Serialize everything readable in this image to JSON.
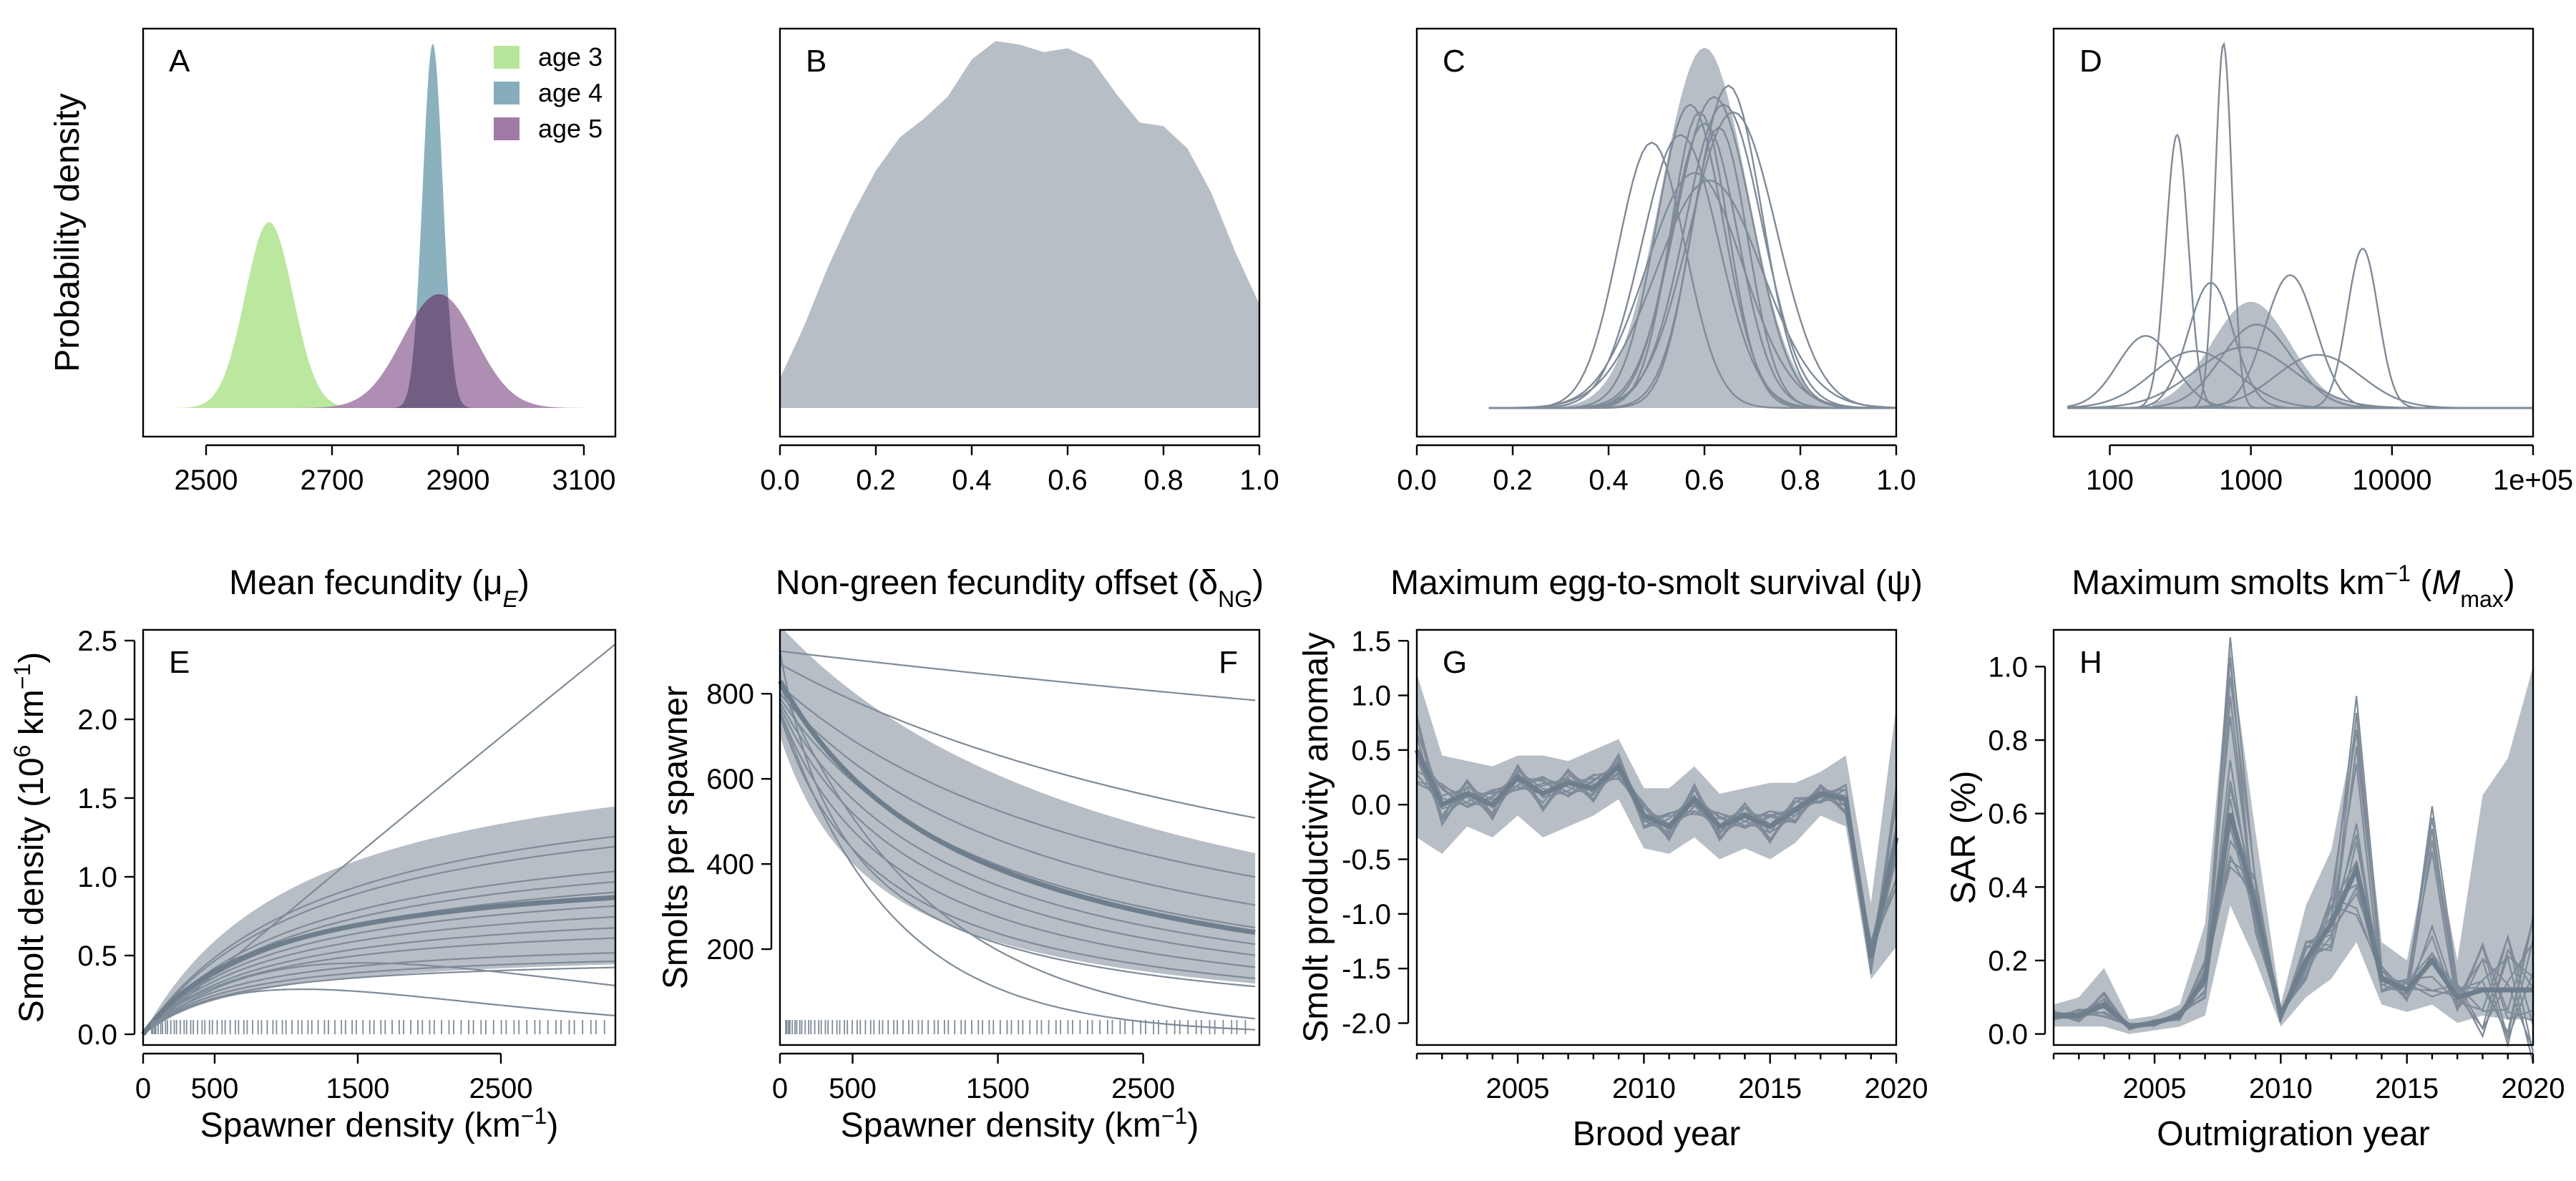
{
  "colors": {
    "band": "#b7bec6",
    "line": "#6f7e8c",
    "thin_line": "#7f8b98",
    "age3": "#b7e69a",
    "age4": "#86adbb",
    "age5": "#a07aa4",
    "overlap45": "#6d5a7d"
  },
  "panels": [
    {
      "key": "A",
      "letter": "A",
      "xlabel": "Mean fecundity (μ",
      "xlabel_sub": "E",
      "xlabel_end": ")",
      "ylabel": "Probability density",
      "xticks": [
        "2500",
        "2700",
        "2900",
        "3100"
      ],
      "legend": [
        {
          "label": "age 3",
          "color_key": "age3"
        },
        {
          "label": "age 4",
          "color_key": "age4"
        },
        {
          "label": "age 5",
          "color_key": "age5"
        }
      ]
    },
    {
      "key": "B",
      "letter": "B",
      "xlabel": "Non-green fecundity offset (δ",
      "xlabel_sub": "NG",
      "xlabel_end": ")",
      "xticks": [
        "0.0",
        "0.2",
        "0.4",
        "0.6",
        "0.8",
        "1.0"
      ]
    },
    {
      "key": "C",
      "letter": "C",
      "xlabel": "Maximum egg-to-smolt survival (ψ)",
      "xticks": [
        "0.0",
        "0.2",
        "0.4",
        "0.6",
        "0.8",
        "1.0"
      ]
    },
    {
      "key": "D",
      "letter": "D",
      "xlabel": "Maximum smolts km",
      "xlabel_sup": "−1",
      "xlabel_mid": " (",
      "xlabel_ital": "M",
      "xlabel_sub": "max",
      "xlabel_end": ")",
      "xticks": [
        "100",
        "1000",
        "10000",
        "1e+05"
      ]
    },
    {
      "key": "E",
      "letter": "E",
      "xlabel": "Spawner density (km",
      "xlabel_sup": "−1",
      "xlabel_end": ")",
      "ylabel": "Smolt density (10",
      "ylabel_sup": "6",
      "ylabel_mid": " km",
      "ylabel_sup2": "−1",
      "ylabel_end": ")",
      "xticks": [
        "0",
        "500",
        "1500",
        "2500"
      ],
      "yticks": [
        "0.0",
        "0.5",
        "1.0",
        "1.5",
        "2.0",
        "2.5"
      ]
    },
    {
      "key": "F",
      "letter": "F",
      "xlabel": "Spawner density (km",
      "xlabel_sup": "−1",
      "xlabel_end": ")",
      "ylabel": "Smolts per spawner",
      "xticks": [
        "0",
        "500",
        "1500",
        "2500"
      ],
      "yticks": [
        "200",
        "400",
        "600",
        "800"
      ]
    },
    {
      "key": "G",
      "letter": "G",
      "xlabel": "Brood year",
      "ylabel": "Smolt productivity anomaly",
      "xticks": [
        "2005",
        "2010",
        "2015",
        "2020"
      ],
      "yticks": [
        "-2.0",
        "-1.5",
        "-1.0",
        "-0.5",
        "0.0",
        "0.5",
        "1.0",
        "1.5"
      ]
    },
    {
      "key": "H",
      "letter": "H",
      "xlabel": "Outmigration year",
      "ylabel": "SAR (%)",
      "xticks": [
        "2005",
        "2010",
        "2015",
        "2020"
      ],
      "yticks": [
        "0.0",
        "0.2",
        "0.4",
        "0.6",
        "0.8",
        "1.0"
      ]
    }
  ],
  "chart_data": [
    {
      "panel": "A",
      "type": "area",
      "xlim": [
        2400,
        3150
      ],
      "series": [
        {
          "name": "age 3",
          "color_key": "age3",
          "mean": 2600,
          "sd": 38,
          "peak": 0.49
        },
        {
          "name": "age 4",
          "color_key": "age4",
          "mean": 2860,
          "sd": 16,
          "peak": 0.96
        },
        {
          "name": "age 5",
          "color_key": "age5",
          "mean": 2870,
          "sd": 58,
          "peak": 0.3
        }
      ]
    },
    {
      "panel": "B",
      "type": "area",
      "xlim": [
        0,
        1
      ],
      "x": [
        0.0,
        0.05,
        0.1,
        0.15,
        0.2,
        0.25,
        0.3,
        0.35,
        0.4,
        0.45,
        0.5,
        0.55,
        0.6,
        0.65,
        0.7,
        0.75,
        0.8,
        0.85,
        0.9,
        0.95,
        1.0
      ],
      "density": [
        0.08,
        0.22,
        0.38,
        0.52,
        0.64,
        0.73,
        0.78,
        0.84,
        0.94,
        0.99,
        0.98,
        0.96,
        0.97,
        0.94,
        0.85,
        0.77,
        0.76,
        0.7,
        0.58,
        0.42,
        0.28
      ]
    },
    {
      "panel": "C",
      "type": "line",
      "xlim": [
        0,
        1
      ],
      "band": {
        "mean": 0.6,
        "sd": 0.09,
        "peak": 0.95
      },
      "curves": [
        {
          "mean": 0.49,
          "sd": 0.07,
          "peak": 0.7
        },
        {
          "mean": 0.55,
          "sd": 0.08,
          "peak": 0.72
        },
        {
          "mean": 0.57,
          "sd": 0.07,
          "peak": 0.8
        },
        {
          "mean": 0.59,
          "sd": 0.06,
          "peak": 0.78
        },
        {
          "mean": 0.6,
          "sd": 0.07,
          "peak": 0.75
        },
        {
          "mean": 0.62,
          "sd": 0.08,
          "peak": 0.82
        },
        {
          "mean": 0.63,
          "sd": 0.06,
          "peak": 0.74
        },
        {
          "mean": 0.64,
          "sd": 0.08,
          "peak": 0.8
        },
        {
          "mean": 0.66,
          "sd": 0.09,
          "peak": 0.78
        },
        {
          "mean": 0.58,
          "sd": 0.1,
          "peak": 0.62
        },
        {
          "mean": 0.61,
          "sd": 0.11,
          "peak": 0.6
        },
        {
          "mean": 0.65,
          "sd": 0.07,
          "peak": 0.85
        }
      ]
    },
    {
      "panel": "D",
      "type": "line",
      "xscale": "log10",
      "xlim": [
        40,
        100000
      ],
      "band": {
        "mean": 1000,
        "sdlog": 0.28,
        "peak": 0.28
      },
      "curves": [
        {
          "mean": 300,
          "sdlog": 0.08,
          "peak": 0.72
        },
        {
          "mean": 640,
          "sdlog": 0.06,
          "peak": 0.96
        },
        {
          "mean": 6200,
          "sdlog": 0.11,
          "peak": 0.42
        },
        {
          "mean": 1900,
          "sdlog": 0.18,
          "peak": 0.35
        },
        {
          "mean": 520,
          "sdlog": 0.16,
          "peak": 0.33
        },
        {
          "mean": 180,
          "sdlog": 0.2,
          "peak": 0.19
        },
        {
          "mean": 1100,
          "sdlog": 0.25,
          "peak": 0.22
        },
        {
          "mean": 900,
          "sdlog": 0.35,
          "peak": 0.16
        },
        {
          "mean": 3000,
          "sdlog": 0.3,
          "peak": 0.14
        },
        {
          "mean": 400,
          "sdlog": 0.3,
          "peak": 0.15
        }
      ]
    },
    {
      "panel": "E",
      "type": "line",
      "xlim": [
        0,
        3300
      ],
      "ylim": [
        0,
        2.5
      ],
      "mean_curve": {
        "alpha": 1.25,
        "cap": 1.1
      },
      "band_upper": {
        "alpha": 1.7,
        "cap": 1.95
      },
      "band_lower": {
        "alpha": 0.7,
        "cap": 0.55
      },
      "curves": [
        {
          "alpha": 0.77,
          "cap": 99
        },
        {
          "alpha": 1.35,
          "cap": 1.75
        },
        {
          "alpha": 1.3,
          "cap": 1.65
        },
        {
          "alpha": 1.2,
          "cap": 1.4
        },
        {
          "alpha": 1.15,
          "cap": 1.3
        },
        {
          "alpha": 1.1,
          "cap": 1.2
        },
        {
          "alpha": 1.1,
          "cap": 1.05
        },
        {
          "alpha": 1.05,
          "cap": 0.95
        },
        {
          "alpha": 1.0,
          "cap": 0.85
        },
        {
          "alpha": 1.0,
          "cap": 0.75
        },
        {
          "alpha": 0.95,
          "cap": 0.62
        },
        {
          "alpha": 0.9,
          "cap": 0.55
        },
        {
          "alpha": 0.85,
          "cap": 0.5
        }
      ],
      "hump_curves": [
        {
          "a": 0.8,
          "b": 0.00065
        },
        {
          "a": 0.7,
          "b": 0.0009
        }
      ]
    },
    {
      "panel": "F",
      "type": "line",
      "xlim": [
        0,
        3300
      ],
      "ylim": [
        0,
        950
      ],
      "mean_curve": {
        "alpha": 830,
        "cap": 1100000
      },
      "band_upper": {
        "alpha": 960,
        "cap": 2500000
      },
      "band_lower": {
        "alpha": 700,
        "cap": 470000
      },
      "curves": [
        {
          "alpha": 900,
          "cap": 20000000
        },
        {
          "alpha": 870,
          "cap": 4000000
        },
        {
          "alpha": 820,
          "cap": 2200000
        },
        {
          "alpha": 800,
          "cap": 1600000
        },
        {
          "alpha": 790,
          "cap": 1200000
        },
        {
          "alpha": 780,
          "cap": 950000
        },
        {
          "alpha": 770,
          "cap": 800000
        },
        {
          "alpha": 760,
          "cap": 650000
        },
        {
          "alpha": 750,
          "cap": 520000
        },
        {
          "alpha": 900,
          "cap": 420000
        }
      ],
      "hump_curves": [
        {
          "a": 820,
          "b": 0.00095
        },
        {
          "a": 760,
          "b": 0.0013
        }
      ]
    },
    {
      "panel": "G",
      "type": "line",
      "xlim": [
        2001,
        2020
      ],
      "ylim": [
        -2.2,
        1.6
      ],
      "x": [
        2001,
        2002,
        2003,
        2004,
        2005,
        2006,
        2007,
        2008,
        2009,
        2010,
        2011,
        2012,
        2013,
        2014,
        2015,
        2016,
        2017,
        2018,
        2019,
        2020
      ],
      "median": [
        0.5,
        0.0,
        0.1,
        0.0,
        0.25,
        0.1,
        0.2,
        0.15,
        0.35,
        -0.1,
        -0.2,
        0.05,
        -0.2,
        -0.1,
        -0.2,
        -0.05,
        0.1,
        0.05,
        -1.4,
        -0.3
      ],
      "band_upper": [
        1.2,
        0.45,
        0.4,
        0.35,
        0.45,
        0.45,
        0.4,
        0.5,
        0.6,
        0.15,
        0.15,
        0.35,
        0.1,
        0.15,
        0.2,
        0.2,
        0.3,
        0.45,
        -0.9,
        0.9
      ],
      "band_lower": [
        -0.3,
        -0.45,
        -0.2,
        -0.3,
        -0.1,
        -0.3,
        -0.2,
        -0.1,
        0.05,
        -0.4,
        -0.45,
        -0.3,
        -0.5,
        -0.4,
        -0.5,
        -0.35,
        -0.1,
        -0.2,
        -1.6,
        -1.3
      ]
    },
    {
      "panel": "H",
      "type": "line",
      "xlim": [
        2001,
        2020
      ],
      "ylim": [
        -0.03,
        1.1
      ],
      "x": [
        2001,
        2002,
        2003,
        2004,
        2005,
        2006,
        2007,
        2008,
        2009,
        2010,
        2011,
        2012,
        2013,
        2014,
        2015,
        2016,
        2017,
        2018,
        2019,
        2020
      ],
      "median": [
        0.05,
        0.05,
        0.08,
        0.02,
        0.03,
        0.05,
        0.15,
        0.6,
        0.35,
        0.05,
        0.2,
        0.3,
        0.45,
        0.15,
        0.12,
        0.2,
        0.1,
        0.12,
        0.12,
        0.12
      ],
      "band_upper": [
        0.08,
        0.1,
        0.18,
        0.04,
        0.05,
        0.08,
        0.3,
        1.05,
        0.55,
        0.08,
        0.35,
        0.5,
        0.85,
        0.25,
        0.2,
        0.55,
        0.2,
        0.65,
        0.75,
        1.0
      ],
      "band_lower": [
        0.02,
        0.02,
        0.02,
        0.0,
        0.01,
        0.02,
        0.05,
        0.35,
        0.2,
        0.02,
        0.1,
        0.15,
        0.25,
        0.08,
        0.06,
        0.08,
        0.03,
        0.05,
        0.04,
        0.04
      ],
      "peaks": [
        {
          "x": 2008,
          "y": 1.08
        },
        {
          "x": 2013,
          "y": 0.92
        },
        {
          "x": 2016,
          "y": 0.62
        }
      ]
    }
  ]
}
